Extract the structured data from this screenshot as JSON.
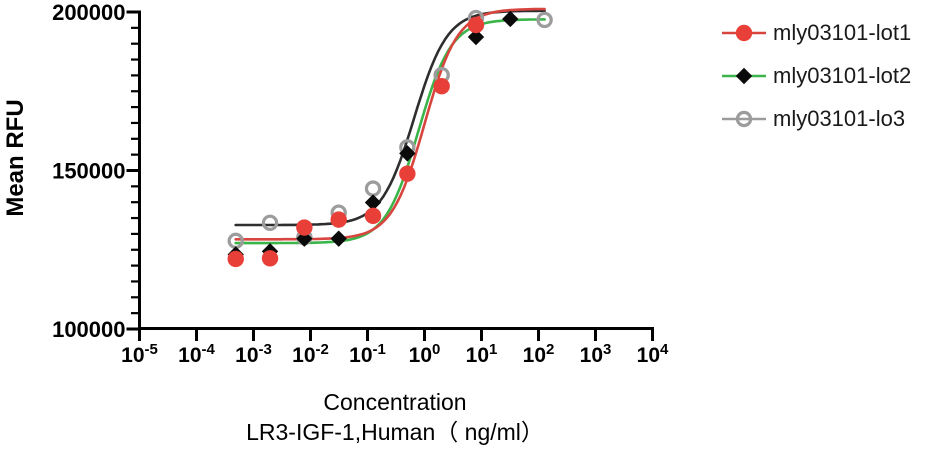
{
  "chart_data": {
    "type": "scatter",
    "title": "",
    "ylabel": "Mean RFU",
    "xlabel_line1": "Concentration",
    "xlabel_line2": "LR3-IGF-1,Human（ ng/ml）",
    "x_scale": "log10",
    "x_tick_exponents": [
      -5,
      -4,
      -3,
      -2,
      -1,
      0,
      1,
      2,
      3,
      4
    ],
    "x_tick_base": "10",
    "y_ticks": [
      100000,
      150000,
      200000
    ],
    "y_minor_step": 5000,
    "ylim": [
      100000,
      200000
    ],
    "xlim_exponents": [
      -5,
      4
    ],
    "grid": false,
    "legend_position": "right",
    "axis_color": "#000000",
    "series": [
      {
        "name": "mly03101-lot1",
        "marker": "filled-circle",
        "marker_color": "#e84039",
        "curve_color": "#d8453f",
        "legend_line_color": "#d8453f",
        "points": [
          {
            "x": 0.000488,
            "y": 122100
          },
          {
            "x": 0.00195,
            "y": 122300
          },
          {
            "x": 0.0078,
            "y": 132000
          },
          {
            "x": 0.03125,
            "y": 134500
          },
          {
            "x": 0.125,
            "y": 135700
          },
          {
            "x": 0.5,
            "y": 149000
          },
          {
            "x": 2,
            "y": 176600
          },
          {
            "x": 8,
            "y": 195900
          }
        ],
        "fit_4pl": {
          "bottom": 128300,
          "top": 201000,
          "ec50": 1.0,
          "hill": 1.5
        }
      },
      {
        "name": "mly03101-lot2",
        "marker": "filled-diamond",
        "marker_color": "#0a0a0a",
        "curve_color": "#3bb54a",
        "legend_line_color": "#3bb54a",
        "points": [
          {
            "x": 0.000488,
            "y": 123500
          },
          {
            "x": 0.00195,
            "y": 124500
          },
          {
            "x": 0.0078,
            "y": 128500
          },
          {
            "x": 0.03125,
            "y": 128500
          },
          {
            "x": 0.125,
            "y": 139900
          },
          {
            "x": 0.5,
            "y": 155400
          },
          {
            "x": 8,
            "y": 192100
          },
          {
            "x": 32,
            "y": 197800
          }
        ],
        "fit_4pl": {
          "bottom": 127100,
          "top": 197700,
          "ec50": 0.78,
          "hill": 1.5
        }
      },
      {
        "name": "mly03101-lo3",
        "marker": "open-circle",
        "marker_color": "#9c9c9c",
        "curve_color": "#2e2e2e",
        "legend_line_color": "#9c9c9c",
        "points": [
          {
            "x": 0.000488,
            "y": 127800
          },
          {
            "x": 0.00195,
            "y": 133500
          },
          {
            "x": 0.0078,
            "y": 128900
          },
          {
            "x": 0.03125,
            "y": 136700
          },
          {
            "x": 0.125,
            "y": 144300
          },
          {
            "x": 0.5,
            "y": 157300
          },
          {
            "x": 2,
            "y": 180100
          },
          {
            "x": 8,
            "y": 198100
          },
          {
            "x": 128,
            "y": 197500
          }
        ],
        "fit_4pl": {
          "bottom": 132800,
          "top": 200400,
          "ec50": 0.66,
          "hill": 1.5
        }
      }
    ],
    "curve_x_range": [
      0.000488,
      128
    ]
  }
}
